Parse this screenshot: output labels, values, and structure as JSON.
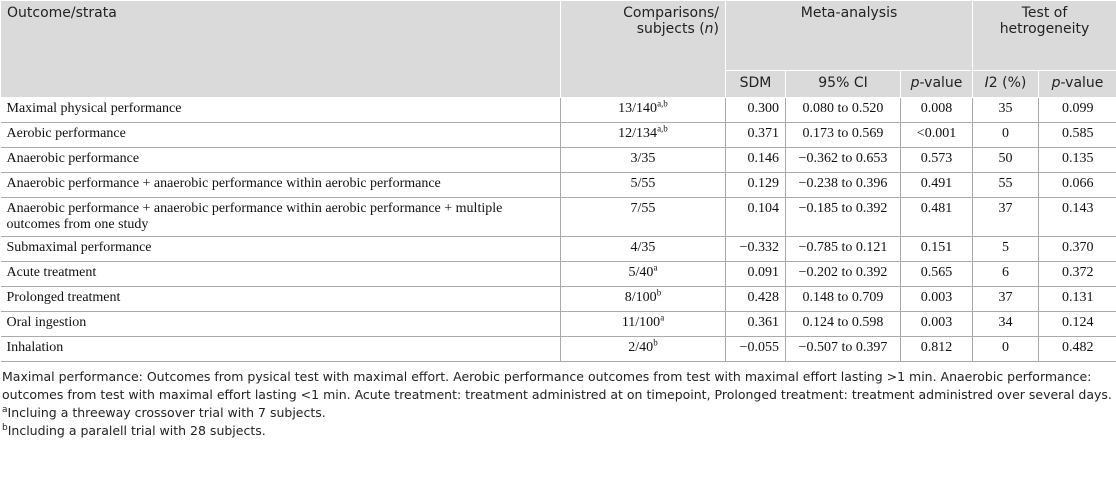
{
  "table": {
    "header": {
      "strata": "Outcome/strata",
      "comparisons": [
        "Comparisons/ subjects (",
        "n",
        ")"
      ],
      "meta": "Meta-analysis",
      "het": "Test of hetrogeneity",
      "sub": [
        [
          "SDM"
        ],
        [
          "95% CI"
        ],
        [
          "",
          "p",
          "-value"
        ],
        [
          "",
          "I",
          "2 (%)"
        ],
        [
          "",
          "p",
          "-value"
        ]
      ]
    },
    "rows": [
      [
        "Maximal physical performance",
        {
          "text": "13/140",
          "sup": "a,b"
        },
        "0.300",
        "0.080 to 0.520",
        "0.008",
        "35",
        "0.099"
      ],
      [
        "Aerobic performance",
        {
          "text": "12/134",
          "sup": "a,b"
        },
        "0.371",
        "0.173 to 0.569",
        "<0.001",
        "0",
        "0.585"
      ],
      [
        "Anaerobic performance",
        "3/35",
        "0.146",
        "−0.362 to 0.653",
        "0.573",
        "50",
        "0.135"
      ],
      [
        "Anaerobic performance + anaerobic performance within aerobic performance",
        "5/55",
        "0.129",
        "−0.238 to 0.396",
        "0.491",
        "55",
        "0.066"
      ],
      [
        "Anaerobic performance + anaerobic performance within aerobic performance + multiple outcomes from one study",
        "7/55",
        "0.104",
        "−0.185 to 0.392",
        "0.481",
        "37",
        "0.143"
      ],
      [
        "Submaximal performance",
        "4/35",
        "−0.332",
        "−0.785 to 0.121",
        "0.151",
        "5",
        "0.370"
      ],
      [
        "Acute treatment",
        {
          "text": "5/40",
          "sup": "a"
        },
        "0.091",
        "−0.202 to 0.392",
        "0.565",
        "6",
        "0.372"
      ],
      [
        "Prolonged treatment",
        {
          "text": "8/100",
          "sup": "b"
        },
        "0.428",
        "0.148 to 0.709",
        "0.003",
        "37",
        "0.131"
      ],
      [
        "Oral ingestion",
        {
          "text": "11/100",
          "sup": "a"
        },
        "0.361",
        "0.124 to 0.598",
        "0.003",
        "34",
        "0.124"
      ],
      [
        "Inhalation",
        {
          "text": "2/40",
          "sup": "b"
        },
        "−0.055",
        "−0.507 to 0.397",
        "0.812",
        "0",
        "0.482"
      ]
    ]
  },
  "notes": {
    "text": "Maximal performance: Outcomes from pysical test with maximal effort. Aerobic performance outcomes from test with maximal effort lasting >1 min. Anaerobic performance: outcomes from test with maximal effort lasting <1 min. Acute treatment: treatment administred at on timepoint, Prolonged treatment: treatment administred over several days.",
    "footnotes": [
      {
        "mark": "a",
        "text": "Incluing a threeway crossover trial with 7 subjects."
      },
      {
        "mark": "b",
        "text": "Including a paralell trial with 28 subjects."
      }
    ]
  }
}
